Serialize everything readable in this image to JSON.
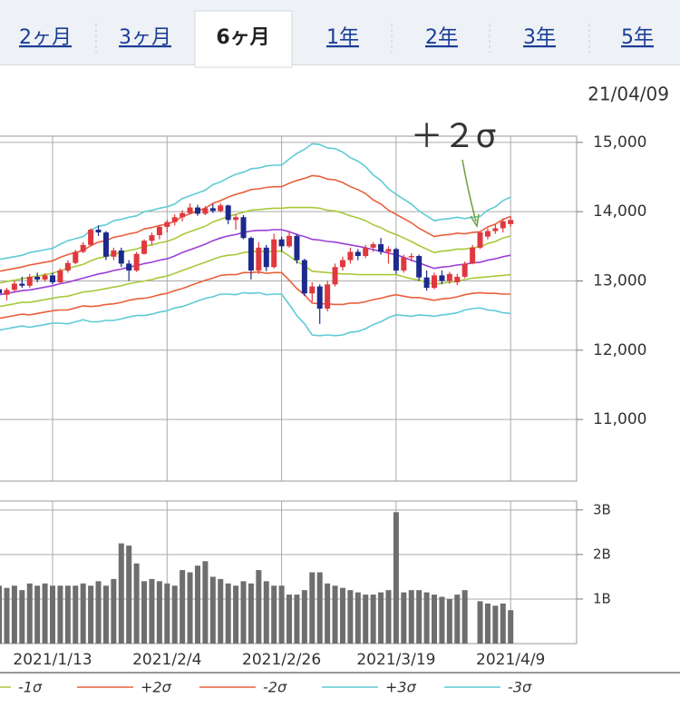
{
  "tabs": {
    "items": [
      "2ヶ月",
      "3ヶ月",
      "6ヶ月",
      "1年",
      "2年",
      "3年",
      "5年"
    ],
    "selected": 2
  },
  "date_label": "21/04/09",
  "chart_data": [
    {
      "type": "candlestick",
      "annotation": "＋２σ",
      "annotation_color": "#6a9e3c",
      "up_color": "#e0383e",
      "down_color": "#1c2a8c",
      "ylim": [
        10110,
        15090
      ],
      "yticks": [
        {
          "value": 11000,
          "label": "11,000"
        },
        {
          "value": 12000,
          "label": "12,000"
        },
        {
          "value": 13000,
          "label": "13,000"
        },
        {
          "value": 14000,
          "label": "14,000"
        },
        {
          "value": 15000,
          "label": "15,000"
        }
      ],
      "grid": true,
      "open": [
        12880,
        12800,
        12870,
        12960,
        12930,
        13060,
        13020,
        13080,
        12980,
        13150,
        13260,
        13420,
        13520,
        13740,
        13700,
        13350,
        13440,
        13250,
        13150,
        13390,
        13580,
        13660,
        13780,
        13850,
        13920,
        13980,
        14060,
        13970,
        14050,
        14010,
        14090,
        13880,
        13920,
        13620,
        13150,
        13480,
        13200,
        13600,
        13500,
        13650,
        13300,
        12820,
        12920,
        12600,
        12950,
        13200,
        13300,
        13420,
        13360,
        13480,
        13530,
        13420,
        13460,
        13150,
        13340,
        13360,
        13050,
        12900,
        13080,
        13000,
        12980,
        13060,
        13250,
        13480,
        13640,
        13720,
        13760,
        13820
      ],
      "high": [
        12950,
        12900,
        13000,
        13060,
        13100,
        13120,
        13110,
        13120,
        13180,
        13300,
        13450,
        13560,
        13760,
        13800,
        13720,
        13480,
        13480,
        13300,
        13420,
        13600,
        13700,
        13800,
        13880,
        13960,
        14020,
        14120,
        14100,
        14080,
        14110,
        14120,
        14100,
        13960,
        13950,
        13640,
        13560,
        13520,
        13680,
        13640,
        13700,
        13680,
        13320,
        12980,
        12950,
        13000,
        13250,
        13350,
        13480,
        13460,
        13520,
        13560,
        13620,
        13500,
        13480,
        13380,
        13400,
        13380,
        13150,
        13120,
        13150,
        13130,
        13100,
        13280,
        13520,
        13720,
        13760,
        13820,
        13900,
        13930
      ],
      "low": [
        12780,
        12720,
        12840,
        12900,
        12900,
        12980,
        12990,
        12950,
        12970,
        13120,
        13240,
        13400,
        13500,
        13650,
        13300,
        13300,
        13200,
        13000,
        13130,
        13380,
        13520,
        13600,
        13700,
        13800,
        13860,
        13960,
        13940,
        13950,
        13980,
        13990,
        13820,
        13740,
        13600,
        13020,
        13100,
        13140,
        13180,
        13420,
        13480,
        13250,
        12780,
        12700,
        12380,
        12560,
        12920,
        13150,
        13250,
        13300,
        13330,
        13420,
        13380,
        13250,
        13100,
        13120,
        13280,
        13000,
        12860,
        12880,
        12950,
        12960,
        12940,
        13040,
        13240,
        13460,
        13600,
        13680,
        13700,
        13780
      ],
      "close": [
        12820,
        12870,
        12960,
        12930,
        13060,
        13020,
        13080,
        12980,
        13150,
        13260,
        13420,
        13520,
        13740,
        13700,
        13350,
        13440,
        13250,
        13150,
        13390,
        13580,
        13660,
        13780,
        13850,
        13920,
        13980,
        14060,
        13970,
        14050,
        14010,
        14090,
        13880,
        13920,
        13620,
        13150,
        13480,
        13200,
        13600,
        13500,
        13650,
        13300,
        12820,
        12920,
        12600,
        12950,
        13200,
        13300,
        13420,
        13360,
        13480,
        13530,
        13420,
        13460,
        13150,
        13340,
        13360,
        13050,
        12900,
        13080,
        13000,
        13100,
        13060,
        13250,
        13480,
        13700,
        13720,
        13760,
        13860,
        13880
      ],
      "series": [
        {
          "color": "#9b3fd6",
          "values": [
            12800,
            12820,
            12840,
            12860,
            12870,
            12890,
            12910,
            12930,
            12960,
            12980,
            13010,
            13040,
            13070,
            13100,
            13120,
            13150,
            13170,
            13200,
            13220,
            13250,
            13270,
            13300,
            13320,
            13360,
            13410,
            13450,
            13490,
            13530,
            13580,
            13620,
            13650,
            13670,
            13700,
            13720,
            13730,
            13730,
            13740,
            13740,
            13710,
            13670,
            13640,
            13600,
            13590,
            13570,
            13560,
            13540,
            13520,
            13500,
            13480,
            13450,
            13430,
            13400,
            13380,
            13340,
            13300,
            13260,
            13220,
            13180,
            13200,
            13210,
            13230,
            13240,
            13260,
            13270,
            13300,
            13320,
            13350,
            13370
          ]
        },
        {
          "color": "#a8c93a",
          "values": [
            12970,
            12990,
            13010,
            13030,
            13050,
            13070,
            13090,
            13110,
            13150,
            13180,
            13210,
            13240,
            13290,
            13330,
            13350,
            13390,
            13410,
            13440,
            13460,
            13500,
            13520,
            13550,
            13570,
            13610,
            13670,
            13710,
            13750,
            13790,
            13850,
            13890,
            13930,
            13960,
            13990,
            14020,
            14030,
            14040,
            14050,
            14050,
            14060,
            14060,
            14060,
            14060,
            14050,
            14020,
            14010,
            13980,
            13940,
            13910,
            13870,
            13810,
            13770,
            13710,
            13670,
            13620,
            13570,
            13510,
            13460,
            13410,
            13430,
            13440,
            13460,
            13460,
            13480,
            13490,
            13540,
            13570,
            13620,
            13650
          ]
        },
        {
          "name": "-1σ",
          "color": "#a8c93a",
          "values": [
            12630,
            12650,
            12670,
            12690,
            12690,
            12710,
            12730,
            12750,
            12770,
            12780,
            12810,
            12840,
            12850,
            12870,
            12890,
            12910,
            12930,
            12960,
            12980,
            13000,
            13020,
            13050,
            13070,
            13110,
            13150,
            13190,
            13230,
            13270,
            13310,
            13350,
            13370,
            13380,
            13410,
            13420,
            13430,
            13420,
            13430,
            13430,
            13360,
            13280,
            13220,
            13140,
            13130,
            13120,
            13110,
            13100,
            13100,
            13090,
            13090,
            13090,
            13090,
            13090,
            13090,
            13060,
            13030,
            13010,
            12980,
            12950,
            12970,
            12980,
            13000,
            13020,
            13040,
            13050,
            13060,
            13070,
            13080,
            13090
          ]
        },
        {
          "name": "+2σ",
          "color": "#e8603c",
          "values": [
            13140,
            13160,
            13180,
            13200,
            13230,
            13250,
            13270,
            13290,
            13340,
            13380,
            13410,
            13440,
            13510,
            13560,
            13580,
            13630,
            13650,
            13680,
            13700,
            13750,
            13770,
            13800,
            13820,
            13860,
            13930,
            13970,
            14010,
            14050,
            14120,
            14160,
            14210,
            14250,
            14280,
            14320,
            14330,
            14350,
            14360,
            14360,
            14410,
            14450,
            14480,
            14520,
            14510,
            14470,
            14460,
            14420,
            14360,
            14320,
            14260,
            14170,
            14110,
            14020,
            13960,
            13900,
            13840,
            13760,
            13700,
            13640,
            13660,
            13670,
            13690,
            13680,
            13700,
            13710,
            13780,
            13820,
            13890,
            13930
          ]
        },
        {
          "name": "-2σ",
          "color": "#e8603c",
          "values": [
            12460,
            12480,
            12500,
            12520,
            12510,
            12530,
            12550,
            12570,
            12580,
            12580,
            12610,
            12640,
            12630,
            12640,
            12660,
            12670,
            12690,
            12720,
            12740,
            12750,
            12770,
            12800,
            12820,
            12860,
            12890,
            12930,
            12970,
            13010,
            13040,
            13080,
            13090,
            13090,
            13120,
            13120,
            13130,
            13110,
            13120,
            13120,
            13010,
            12890,
            12800,
            12680,
            12670,
            12670,
            12660,
            12660,
            12680,
            12680,
            12700,
            12730,
            12750,
            12780,
            12800,
            12780,
            12760,
            12760,
            12740,
            12720,
            12740,
            12750,
            12770,
            12800,
            12820,
            12830,
            12820,
            12820,
            12810,
            12810
          ]
        },
        {
          "name": "+3σ",
          "color": "#5fcbd6",
          "values": [
            13310,
            13330,
            13350,
            13370,
            13410,
            13430,
            13450,
            13470,
            13530,
            13580,
            13610,
            13640,
            13730,
            13790,
            13810,
            13870,
            13890,
            13920,
            13940,
            14000,
            14020,
            14050,
            14070,
            14110,
            14190,
            14230,
            14270,
            14310,
            14390,
            14430,
            14490,
            14540,
            14570,
            14620,
            14630,
            14660,
            14670,
            14670,
            14760,
            14840,
            14900,
            14980,
            14970,
            14920,
            14910,
            14860,
            14780,
            14730,
            14650,
            14530,
            14450,
            14330,
            14250,
            14180,
            14110,
            14010,
            13940,
            13870,
            13890,
            13900,
            13920,
            13900,
            13920,
            13930,
            14020,
            14070,
            14160,
            14210
          ]
        },
        {
          "name": "-3σ",
          "color": "#5fcbd6",
          "values": [
            12290,
            12310,
            12330,
            12350,
            12330,
            12350,
            12370,
            12390,
            12390,
            12380,
            12410,
            12440,
            12410,
            12410,
            12430,
            12430,
            12450,
            12480,
            12500,
            12500,
            12520,
            12550,
            12570,
            12610,
            12630,
            12670,
            12710,
            12750,
            12770,
            12810,
            12810,
            12800,
            12830,
            12820,
            12830,
            12800,
            12810,
            12810,
            12660,
            12500,
            12380,
            12220,
            12210,
            12220,
            12210,
            12220,
            12260,
            12270,
            12310,
            12370,
            12410,
            12470,
            12510,
            12500,
            12490,
            12510,
            12500,
            12490,
            12510,
            12520,
            12540,
            12580,
            12600,
            12610,
            12580,
            12570,
            12540,
            12530
          ]
        }
      ]
    },
    {
      "type": "bar",
      "color": "#6e6e6e",
      "ylim": [
        0,
        3.2
      ],
      "yticks": [
        {
          "value": 1,
          "label": "1B"
        },
        {
          "value": 2,
          "label": "2B"
        },
        {
          "value": 3,
          "label": "3B"
        }
      ],
      "grid": true,
      "categories": [
        null,
        null,
        null,
        null,
        null,
        null,
        null,
        "2021/1/13",
        null,
        null,
        null,
        null,
        null,
        null,
        null,
        null,
        null,
        null,
        null,
        null,
        null,
        null,
        "2021/2/4",
        null,
        null,
        null,
        null,
        null,
        null,
        null,
        null,
        null,
        null,
        null,
        null,
        null,
        null,
        "2021/2/26",
        null,
        null,
        null,
        null,
        null,
        null,
        null,
        null,
        null,
        null,
        null,
        null,
        null,
        null,
        "2021/3/19",
        null,
        null,
        null,
        null,
        null,
        null,
        null,
        null,
        null,
        null,
        null,
        null,
        null,
        null,
        "2021/4/9"
      ],
      "values": [
        1.3,
        1.25,
        1.3,
        1.2,
        1.35,
        1.3,
        1.35,
        1.3,
        1.3,
        1.3,
        1.3,
        1.35,
        1.3,
        1.4,
        1.3,
        1.45,
        2.25,
        2.2,
        1.8,
        1.4,
        1.45,
        1.4,
        1.35,
        1.3,
        1.65,
        1.6,
        1.75,
        1.85,
        1.5,
        1.45,
        1.35,
        1.3,
        1.4,
        1.35,
        1.65,
        1.4,
        1.3,
        1.3,
        1.1,
        1.1,
        1.2,
        1.6,
        1.6,
        1.35,
        1.3,
        1.25,
        1.2,
        1.15,
        1.1,
        1.1,
        1.15,
        1.2,
        2.95,
        1.15,
        1.2,
        1.2,
        1.15,
        1.1,
        1.05,
        1.0,
        1.1,
        1.2,
        null,
        0.95,
        0.9,
        0.85,
        0.9,
        0.75
      ]
    }
  ]
}
